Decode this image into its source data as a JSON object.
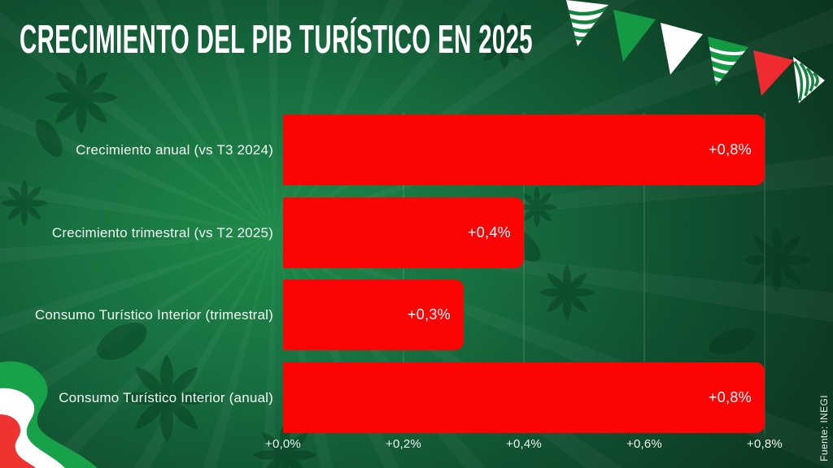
{
  "title": "CRECIMIENTO DEL PIB TURÍSTICO EN 2025",
  "source": "Fuente: INEGI",
  "colors": {
    "bar_red": "#fc0304",
    "background_light_green": "#1f8b4a",
    "background_dark_green": "#092c1a",
    "pennant_green": "#149a43",
    "pennant_red": "#ef2a30",
    "pennant_white": "#ffffff",
    "ribbon_green": "#17a24a",
    "ribbon_white": "#ffffff",
    "ribbon_red": "#ee3330",
    "text": "#ffffff"
  },
  "decorations": {
    "top_right": "mexican-bunting-pennants",
    "bottom_left": "mexican-flag-wavy-ribbon"
  },
  "chart_data": {
    "type": "bar",
    "orientation": "horizontal",
    "title": "CRECIMIENTO DEL PIB TURÍSTICO EN 2025",
    "categories": [
      "Crecimiento anual (vs T3 2024)",
      "Crecimiento trimestral (vs T2 2025)",
      "Consumo Turístico Interior (trimestral)",
      "Consumo Turístico Interior (anual)"
    ],
    "values": [
      0.8,
      0.4,
      0.3,
      0.8
    ],
    "value_labels": [
      "+0,8%",
      "+0,4%",
      "+0,3%",
      "+0,8%"
    ],
    "x_ticks": [
      "+0,0%",
      "+0,2%",
      "+0,4%",
      "+0,6%",
      "+0,8%"
    ],
    "x_tick_values": [
      0.0,
      0.2,
      0.4,
      0.6,
      0.8
    ],
    "xlim": [
      0,
      0.8
    ],
    "unit": "%",
    "grid": true,
    "legend": false,
    "source": "Fuente: INEGI"
  }
}
